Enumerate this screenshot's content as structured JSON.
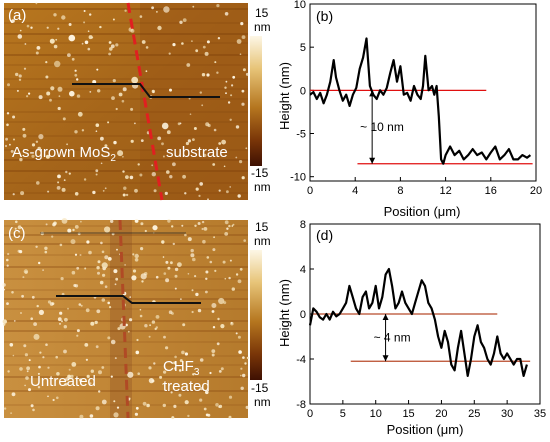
{
  "panels": {
    "a": {
      "letter": "(a)",
      "colorbar_top": "15",
      "colorbar_top_unit": "nm",
      "colorbar_bottom": "-15",
      "colorbar_bottom_unit": "nm",
      "left_region_label": "As-grown MoS",
      "left_region_subscript": "2",
      "right_region_label": "substrate"
    },
    "c": {
      "letter": "(c)",
      "colorbar_top": "15",
      "colorbar_top_unit": "nm",
      "colorbar_bottom": "-15",
      "colorbar_bottom_unit": "nm",
      "left_region_label": "Untreated",
      "right_region_label_1": "CHF",
      "right_region_subscript": "3",
      "right_region_label_2": "treated"
    }
  },
  "colors": {
    "afm_light": "#e8c27a",
    "afm_mid": "#b5761f",
    "afm_dark": "#6a2a05",
    "profile_line": "#000000",
    "reference_b": "#e01010",
    "reference_d": "#b84a2a",
    "dashed_boundary_a": "#e02020",
    "dashed_boundary_c": "#b04a25"
  },
  "chart_data": [
    {
      "type": "line",
      "panel_label": "(b)",
      "xlabel": "Position (μm)",
      "ylabel": "Height (nm)",
      "xlim": [
        0,
        20
      ],
      "ylim": [
        -10.5,
        10
      ],
      "xticks": [
        0,
        4,
        8,
        12,
        16,
        20
      ],
      "yticks": [
        10,
        5,
        0,
        -5,
        -10
      ],
      "series": [
        {
          "x": [
            0,
            0.3,
            0.6,
            0.9,
            1.2,
            1.5,
            1.8,
            2.1,
            2.3,
            2.6,
            2.9,
            3.2,
            3.5,
            3.8,
            4.1,
            4.4,
            4.7,
            5.0,
            5.3,
            5.6,
            5.9,
            6.2,
            6.5,
            6.8,
            7.1,
            7.4,
            7.7,
            8.0,
            8.3,
            8.6,
            8.9,
            9.2,
            9.5,
            9.8,
            10.0,
            10.2,
            10.5,
            10.8,
            11.0,
            11.2,
            11.4,
            11.6,
            11.8,
            12.0,
            12.4,
            12.8,
            13.2,
            13.6,
            14.0,
            14.4,
            14.8,
            15.2,
            15.6,
            16.0,
            16.4,
            16.8,
            17.2,
            17.6,
            18.0,
            18.4,
            18.8,
            19.2,
            19.5
          ],
          "y": [
            -0.5,
            -0.2,
            -1.0,
            -0.3,
            -1.5,
            -0.5,
            1.0,
            3.5,
            1.5,
            0.0,
            -1.2,
            -0.5,
            -1.8,
            -0.5,
            0.3,
            2.5,
            3.8,
            6.0,
            0.5,
            -0.5,
            -1.0,
            0.0,
            -0.5,
            0.3,
            2.0,
            3.5,
            1.0,
            2.8,
            -0.5,
            -0.3,
            -1.2,
            0.5,
            -0.5,
            -1.0,
            0.5,
            4.0,
            0.0,
            0.5,
            -0.5,
            0.5,
            -3.0,
            -8.0,
            -8.5,
            -7.5,
            -6.5,
            -7.5,
            -7.0,
            -8.0,
            -7.5,
            -6.8,
            -7.5,
            -7.2,
            -8.0,
            -7.2,
            -6.5,
            -8.0,
            -7.5,
            -6.8,
            -8.0,
            -8.0,
            -7.5,
            -7.8,
            -7.5
          ]
        }
      ],
      "reference_lines": [
        {
          "y": 0,
          "x_from": 0,
          "x_to": 15.6
        },
        {
          "y": -8.5,
          "x_from": 4.2,
          "x_to": 19.7
        }
      ],
      "annotation": {
        "text": "~ 10 nm",
        "x": 5.5,
        "y_from": 0,
        "y_to": -8.5
      }
    },
    {
      "type": "line",
      "panel_label": "(d)",
      "xlabel": "Position (μm)",
      "ylabel": "Height (nm)",
      "xlim": [
        0,
        35
      ],
      "ylim": [
        -8,
        8
      ],
      "xticks": [
        0,
        5,
        10,
        15,
        20,
        25,
        30,
        35
      ],
      "yticks": [
        8,
        4,
        0,
        -4,
        -8
      ],
      "series": [
        {
          "x": [
            0,
            0.5,
            1.0,
            1.5,
            2.0,
            2.5,
            3.0,
            3.5,
            4.0,
            4.5,
            5.0,
            5.5,
            6.0,
            6.5,
            7.0,
            7.5,
            8.0,
            8.5,
            9.0,
            9.5,
            10.0,
            10.5,
            11.0,
            11.5,
            12.0,
            12.5,
            13.0,
            13.5,
            14.0,
            14.5,
            15.0,
            15.5,
            16.0,
            16.5,
            17.0,
            17.5,
            18.0,
            18.5,
            19.0,
            19.5,
            20.0,
            20.5,
            21.0,
            21.5,
            22.0,
            22.5,
            23.0,
            23.5,
            24.0,
            24.5,
            25.0,
            25.5,
            26.0,
            26.5,
            27.0,
            27.5,
            28.0,
            28.5,
            29.0,
            29.5,
            30.0,
            30.5,
            31.0,
            31.5,
            32.0,
            32.5,
            33.0
          ],
          "y": [
            -1.0,
            0.5,
            0.2,
            -0.3,
            -0.5,
            0.0,
            -0.5,
            0.2,
            -0.2,
            0.0,
            0.5,
            1.0,
            2.5,
            1.5,
            0.5,
            0.0,
            1.5,
            2.0,
            0.5,
            1.0,
            2.5,
            0.5,
            1.5,
            3.5,
            4.0,
            2.5,
            0.5,
            1.0,
            2.0,
            1.0,
            0.5,
            0.0,
            1.0,
            2.0,
            3.0,
            2.5,
            1.0,
            0.5,
            -0.5,
            -2.0,
            -3.0,
            -1.5,
            -2.5,
            -4.5,
            -5.0,
            -3.0,
            -1.5,
            -3.5,
            -5.5,
            -4.0,
            -2.0,
            -1.0,
            -2.5,
            -3.0,
            -4.0,
            -4.5,
            -3.5,
            -2.0,
            -3.5,
            -4.0,
            -3.5,
            -4.0,
            -4.5,
            -4.0,
            -4.0,
            -5.5,
            -4.5
          ]
        }
      ],
      "reference_lines": [
        {
          "y": 0,
          "x_from": 0.3,
          "x_to": 28.5
        },
        {
          "y": -4.2,
          "x_from": 6.2,
          "x_to": 33.5
        }
      ],
      "annotation": {
        "text": "~ 4 nm",
        "x": 11.5,
        "y_from": 0,
        "y_to": -4.2
      }
    }
  ]
}
